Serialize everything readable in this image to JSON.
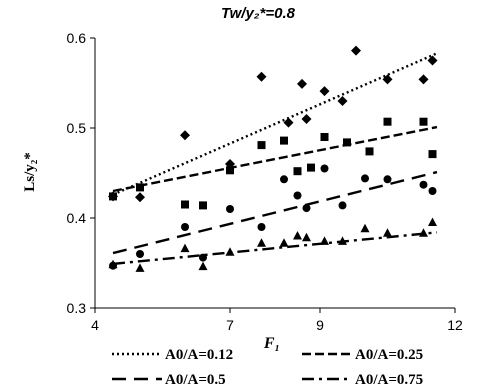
{
  "chart_data": {
    "type": "scatter",
    "title": "Tw/y₂*=0.8",
    "xlabel": "F₁",
    "ylabel": "Ls/y₂*",
    "xlim": [
      4,
      12
    ],
    "ylim": [
      0.3,
      0.6
    ],
    "xticks": [
      "4",
      "7",
      "9",
      "12"
    ],
    "xtick_values": [
      4,
      7,
      9,
      12
    ],
    "yticks": [
      "0.3",
      "0.4",
      "0.5",
      "0.6"
    ],
    "ytick_values": [
      0.3,
      0.4,
      0.5,
      0.6
    ],
    "legend_position": "bottom",
    "series": [
      {
        "name": "A0/A=0.12",
        "marker": "diamond",
        "line_style": "dotted",
        "color": "#000000",
        "points": [
          [
            4.4,
            0.424
          ],
          [
            5.0,
            0.423
          ],
          [
            6.0,
            0.492
          ],
          [
            7.0,
            0.46
          ],
          [
            7.7,
            0.557
          ],
          [
            8.3,
            0.506
          ],
          [
            8.7,
            0.51
          ],
          [
            8.6,
            0.549
          ],
          [
            9.1,
            0.541
          ],
          [
            9.5,
            0.53
          ],
          [
            9.8,
            0.586
          ],
          [
            10.5,
            0.554
          ],
          [
            11.3,
            0.554
          ],
          [
            11.5,
            0.575
          ]
        ],
        "trend": [
          [
            4.4,
            0.426
          ],
          [
            11.6,
            0.583
          ]
        ]
      },
      {
        "name": "A0/A=0.25",
        "marker": "square",
        "line_style": "dashed",
        "color": "#000000",
        "points": [
          [
            4.4,
            0.424
          ],
          [
            5.0,
            0.434
          ],
          [
            6.0,
            0.415
          ],
          [
            6.4,
            0.414
          ],
          [
            7.0,
            0.453
          ],
          [
            7.7,
            0.481
          ],
          [
            8.2,
            0.486
          ],
          [
            8.5,
            0.452
          ],
          [
            8.8,
            0.456
          ],
          [
            9.1,
            0.49
          ],
          [
            9.6,
            0.484
          ],
          [
            10.1,
            0.474
          ],
          [
            10.5,
            0.507
          ],
          [
            11.3,
            0.507
          ],
          [
            11.5,
            0.471
          ]
        ],
        "trend": [
          [
            4.4,
            0.43
          ],
          [
            11.6,
            0.501
          ]
        ]
      },
      {
        "name": "A0/A=0.5",
        "marker": "circle",
        "line_style": "long-dash",
        "color": "#000000",
        "points": [
          [
            4.4,
            0.347
          ],
          [
            5.0,
            0.36
          ],
          [
            6.0,
            0.39
          ],
          [
            6.4,
            0.356
          ],
          [
            7.0,
            0.41
          ],
          [
            7.7,
            0.39
          ],
          [
            8.2,
            0.443
          ],
          [
            8.5,
            0.425
          ],
          [
            8.7,
            0.411
          ],
          [
            9.1,
            0.455
          ],
          [
            9.5,
            0.414
          ],
          [
            10.0,
            0.444
          ],
          [
            10.5,
            0.443
          ],
          [
            11.3,
            0.437
          ],
          [
            11.5,
            0.43
          ]
        ],
        "trend": [
          [
            4.4,
            0.361
          ],
          [
            11.6,
            0.451
          ]
        ]
      },
      {
        "name": "A0/A=0.75",
        "marker": "triangle",
        "line_style": "dash-dot",
        "color": "#000000",
        "points": [
          [
            4.4,
            0.348
          ],
          [
            5.0,
            0.344
          ],
          [
            6.0,
            0.366
          ],
          [
            6.4,
            0.346
          ],
          [
            7.0,
            0.362
          ],
          [
            7.7,
            0.372
          ],
          [
            8.2,
            0.372
          ],
          [
            8.5,
            0.38
          ],
          [
            8.7,
            0.378
          ],
          [
            9.1,
            0.374
          ],
          [
            9.5,
            0.374
          ],
          [
            10.0,
            0.388
          ],
          [
            10.5,
            0.383
          ],
          [
            11.3,
            0.383
          ],
          [
            11.5,
            0.395
          ]
        ],
        "trend": [
          [
            4.4,
            0.349
          ],
          [
            11.6,
            0.384
          ]
        ]
      }
    ]
  }
}
